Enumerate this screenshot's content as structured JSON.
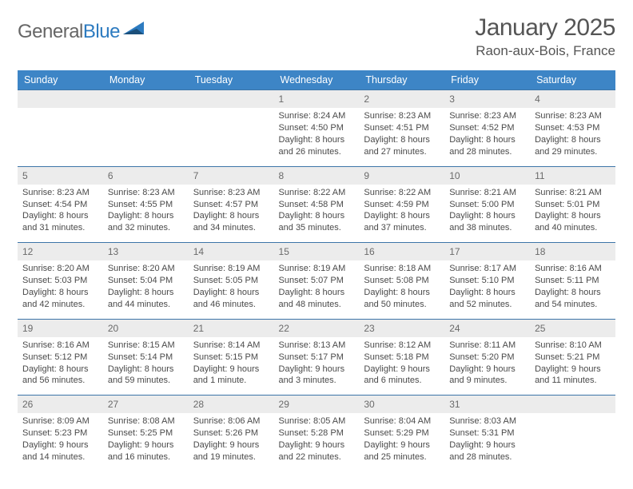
{
  "brand": {
    "part1": "General",
    "part2": "Blue"
  },
  "title": "January 2025",
  "location": "Raon-aux-Bois, France",
  "colors": {
    "header_bg": "#3d85c6",
    "header_text": "#ffffff",
    "row_border": "#3d75a8",
    "daynum_bg": "#ececec",
    "body_text": "#4a4a4a",
    "brand_blue": "#2d7bc0",
    "page_bg": "#ffffff"
  },
  "weekdays": [
    "Sunday",
    "Monday",
    "Tuesday",
    "Wednesday",
    "Thursday",
    "Friday",
    "Saturday"
  ],
  "first_weekday_index": 3,
  "days": [
    {
      "n": 1,
      "sunrise": "8:24 AM",
      "sunset": "4:50 PM",
      "daylight": "8 hours and 26 minutes."
    },
    {
      "n": 2,
      "sunrise": "8:23 AM",
      "sunset": "4:51 PM",
      "daylight": "8 hours and 27 minutes."
    },
    {
      "n": 3,
      "sunrise": "8:23 AM",
      "sunset": "4:52 PM",
      "daylight": "8 hours and 28 minutes."
    },
    {
      "n": 4,
      "sunrise": "8:23 AM",
      "sunset": "4:53 PM",
      "daylight": "8 hours and 29 minutes."
    },
    {
      "n": 5,
      "sunrise": "8:23 AM",
      "sunset": "4:54 PM",
      "daylight": "8 hours and 31 minutes."
    },
    {
      "n": 6,
      "sunrise": "8:23 AM",
      "sunset": "4:55 PM",
      "daylight": "8 hours and 32 minutes."
    },
    {
      "n": 7,
      "sunrise": "8:23 AM",
      "sunset": "4:57 PM",
      "daylight": "8 hours and 34 minutes."
    },
    {
      "n": 8,
      "sunrise": "8:22 AM",
      "sunset": "4:58 PM",
      "daylight": "8 hours and 35 minutes."
    },
    {
      "n": 9,
      "sunrise": "8:22 AM",
      "sunset": "4:59 PM",
      "daylight": "8 hours and 37 minutes."
    },
    {
      "n": 10,
      "sunrise": "8:21 AM",
      "sunset": "5:00 PM",
      "daylight": "8 hours and 38 minutes."
    },
    {
      "n": 11,
      "sunrise": "8:21 AM",
      "sunset": "5:01 PM",
      "daylight": "8 hours and 40 minutes."
    },
    {
      "n": 12,
      "sunrise": "8:20 AM",
      "sunset": "5:03 PM",
      "daylight": "8 hours and 42 minutes."
    },
    {
      "n": 13,
      "sunrise": "8:20 AM",
      "sunset": "5:04 PM",
      "daylight": "8 hours and 44 minutes."
    },
    {
      "n": 14,
      "sunrise": "8:19 AM",
      "sunset": "5:05 PM",
      "daylight": "8 hours and 46 minutes."
    },
    {
      "n": 15,
      "sunrise": "8:19 AM",
      "sunset": "5:07 PM",
      "daylight": "8 hours and 48 minutes."
    },
    {
      "n": 16,
      "sunrise": "8:18 AM",
      "sunset": "5:08 PM",
      "daylight": "8 hours and 50 minutes."
    },
    {
      "n": 17,
      "sunrise": "8:17 AM",
      "sunset": "5:10 PM",
      "daylight": "8 hours and 52 minutes."
    },
    {
      "n": 18,
      "sunrise": "8:16 AM",
      "sunset": "5:11 PM",
      "daylight": "8 hours and 54 minutes."
    },
    {
      "n": 19,
      "sunrise": "8:16 AM",
      "sunset": "5:12 PM",
      "daylight": "8 hours and 56 minutes."
    },
    {
      "n": 20,
      "sunrise": "8:15 AM",
      "sunset": "5:14 PM",
      "daylight": "8 hours and 59 minutes."
    },
    {
      "n": 21,
      "sunrise": "8:14 AM",
      "sunset": "5:15 PM",
      "daylight": "9 hours and 1 minute."
    },
    {
      "n": 22,
      "sunrise": "8:13 AM",
      "sunset": "5:17 PM",
      "daylight": "9 hours and 3 minutes."
    },
    {
      "n": 23,
      "sunrise": "8:12 AM",
      "sunset": "5:18 PM",
      "daylight": "9 hours and 6 minutes."
    },
    {
      "n": 24,
      "sunrise": "8:11 AM",
      "sunset": "5:20 PM",
      "daylight": "9 hours and 9 minutes."
    },
    {
      "n": 25,
      "sunrise": "8:10 AM",
      "sunset": "5:21 PM",
      "daylight": "9 hours and 11 minutes."
    },
    {
      "n": 26,
      "sunrise": "8:09 AM",
      "sunset": "5:23 PM",
      "daylight": "9 hours and 14 minutes."
    },
    {
      "n": 27,
      "sunrise": "8:08 AM",
      "sunset": "5:25 PM",
      "daylight": "9 hours and 16 minutes."
    },
    {
      "n": 28,
      "sunrise": "8:06 AM",
      "sunset": "5:26 PM",
      "daylight": "9 hours and 19 minutes."
    },
    {
      "n": 29,
      "sunrise": "8:05 AM",
      "sunset": "5:28 PM",
      "daylight": "9 hours and 22 minutes."
    },
    {
      "n": 30,
      "sunrise": "8:04 AM",
      "sunset": "5:29 PM",
      "daylight": "9 hours and 25 minutes."
    },
    {
      "n": 31,
      "sunrise": "8:03 AM",
      "sunset": "5:31 PM",
      "daylight": "9 hours and 28 minutes."
    }
  ],
  "labels": {
    "sunrise": "Sunrise:",
    "sunset": "Sunset:",
    "daylight": "Daylight:"
  }
}
